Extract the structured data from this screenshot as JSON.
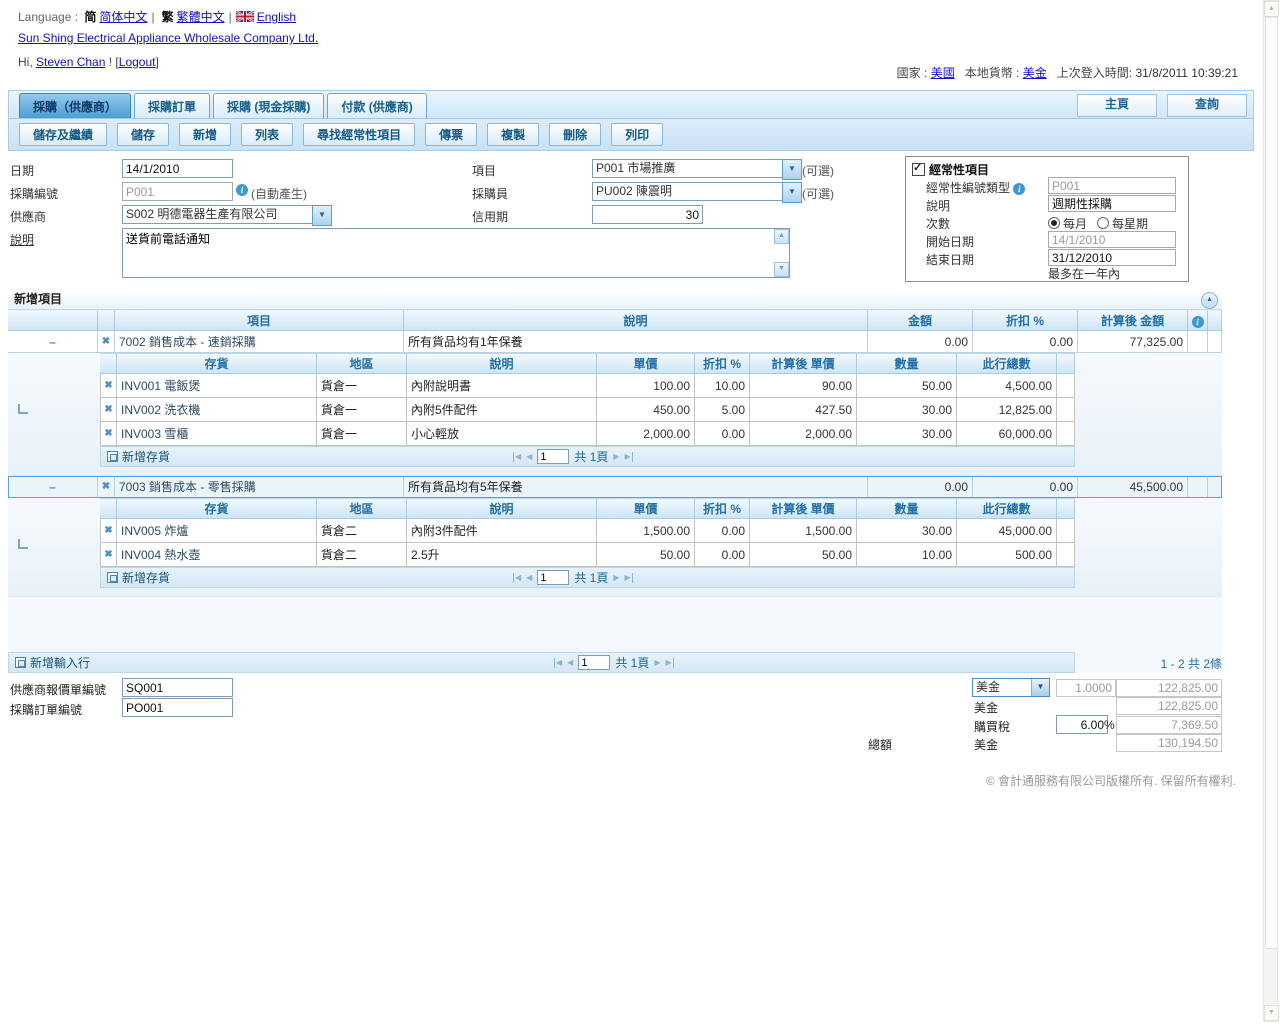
{
  "header": {
    "language_label": "Language :",
    "lang_simplified_glyph": "简",
    "lang_simplified": "简体中文",
    "lang_traditional_glyph": "繁",
    "lang_traditional": "繁體中文",
    "lang_english": "English",
    "company_link": "Sun Shing Electrical Appliance Wholesale Company Ltd.",
    "greeting_prefix": "Hi,",
    "user_link": "Steven Chan",
    "greeting_suffix": "!  [",
    "logout_label": "Logout",
    "greeting_end": "]",
    "country_label": "國家 :",
    "country_value": "美國",
    "currency_label": "本地貨幣 :",
    "currency_value": "美金",
    "last_login_label": "上次登入時間:",
    "last_login_value": "31/8/2011 10:39:21"
  },
  "tabs": [
    {
      "label": "採購（供應商）",
      "active": true
    },
    {
      "label": "採購訂單",
      "active": false
    },
    {
      "label": "採購 (現金採購)",
      "active": false
    },
    {
      "label": "付款 (供應商)",
      "active": false
    }
  ],
  "nav_buttons": {
    "home": "主頁",
    "query": "查詢"
  },
  "toolbar": [
    "儲存及繼績",
    "儲存",
    "新增",
    "列表",
    "尋找經常性項目",
    "傳票",
    "複製",
    "刪除",
    "列印"
  ],
  "form": {
    "date_label": "日期",
    "date_value": "14/1/2010",
    "purchase_no_label": "採購編號",
    "purchase_no_value": "P001",
    "auto_generate_note": "(自動產生)",
    "supplier_label": "供應商",
    "supplier_value": "S002 明德電器生產有限公司",
    "desc_label": "說明",
    "desc_value": "送貨前電話通知",
    "project_label": "項目",
    "project_value": "P001 市場推廣",
    "optional_note": "(可選)",
    "purchaser_label": "採購員",
    "purchaser_value": "PU002 陳震明",
    "credit_label": "信用期",
    "credit_value": "30"
  },
  "recurring": {
    "title": "經常性項目",
    "type_label": "經常性編號類型",
    "type_value": "P001",
    "desc_label": "說明",
    "desc_value": "週期性採購",
    "freq_label": "次數",
    "freq_monthly": "每月",
    "freq_weekly": "每星期",
    "start_label": "開始日期",
    "start_value": "14/1/2010",
    "end_label": "結束日期",
    "end_value": "31/12/2010",
    "note": "最多在一年內"
  },
  "grid": {
    "title": "新增項目",
    "columns": {
      "item": "項目",
      "desc": "說明",
      "amount": "金額",
      "discount": "折扣 %",
      "calc_amount": "計算後 金額"
    },
    "sub_columns": {
      "inventory": "存貨",
      "region": "地區",
      "desc": "說明",
      "unit_price": "單價",
      "discount": "折扣 %",
      "calc_price": "計算後 單價",
      "qty": "數量",
      "line_total": "此行總數"
    },
    "groups": [
      {
        "item": "7002 銷售成本 - 速銷採購",
        "desc": "所有貨品均有1年保養",
        "amount": "0.00",
        "discount": "0.00",
        "calc_amount": "77,325.00",
        "selected": false,
        "rows": [
          {
            "inventory": "INV001 電飯煲",
            "region": "貨倉一",
            "desc": "內附說明書",
            "unit_price": "100.00",
            "discount": "10.00",
            "calc_price": "90.00",
            "qty": "50.00",
            "line_total": "4,500.00"
          },
          {
            "inventory": "INV002 洗衣機",
            "region": "貨倉一",
            "desc": "內附5件配件",
            "unit_price": "450.00",
            "discount": "5.00",
            "calc_price": "427.50",
            "qty": "30.00",
            "line_total": "12,825.00"
          },
          {
            "inventory": "INV003 雪櫃",
            "region": "貨倉一",
            "desc": "小心輕放",
            "unit_price": "2,000.00",
            "discount": "0.00",
            "calc_price": "2,000.00",
            "qty": "30.00",
            "line_total": "60,000.00"
          }
        ]
      },
      {
        "item": "7003 銷售成本 - 零售採購",
        "desc": "所有貨品均有5年保養",
        "amount": "0.00",
        "discount": "0.00",
        "calc_amount": "45,500.00",
        "selected": true,
        "rows": [
          {
            "inventory": "INV005 炸爐",
            "region": "貨倉二",
            "desc": "內附3件配件",
            "unit_price": "1,500.00",
            "discount": "0.00",
            "calc_price": "1,500.00",
            "qty": "30.00",
            "line_total": "45,000.00"
          },
          {
            "inventory": "INV004 熱水壺",
            "region": "貨倉二",
            "desc": "2.5升",
            "unit_price": "50.00",
            "discount": "0.00",
            "calc_price": "50.00",
            "qty": "10.00",
            "line_total": "500.00"
          }
        ]
      }
    ],
    "add_inventory_label": "新增存貨",
    "add_row_label": "新增輸入行",
    "page_value": "1",
    "page_total_label": "共 1頁",
    "records_label": "1 - 2  共 2條"
  },
  "footer_form": {
    "quote_label": "供應商報價單編號",
    "quote_value": "SQ001",
    "po_label": "採購訂單編號",
    "po_value": "PO001",
    "currency_select": "美金",
    "rate_value": "1.0000",
    "amount_value": "122,825.00",
    "local_currency": "美金",
    "local_amount": "122,825.00",
    "tax_label": "購買稅",
    "tax_rate": "6.00",
    "tax_pct": "%",
    "tax_amount": "7,369.50",
    "total_label": "總額",
    "total_currency": "美金",
    "total_amount": "130,194.50"
  },
  "copyright": "© 會計通服務有限公司版權所有. 保留所有權利."
}
